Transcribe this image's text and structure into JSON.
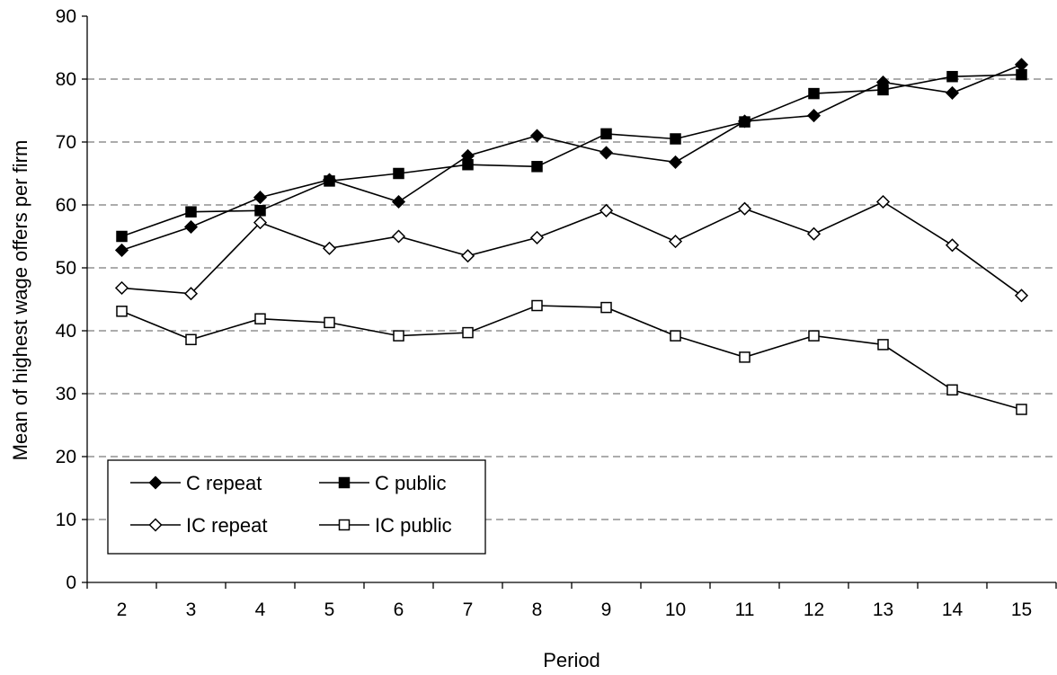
{
  "chart_data": {
    "type": "line",
    "xlabel": "Period",
    "ylabel": "Mean of highest wage offers per firm",
    "ylim": [
      0,
      90
    ],
    "yticks": [
      0,
      10,
      20,
      30,
      40,
      50,
      60,
      70,
      80,
      90
    ],
    "grid": "horizontal dashed",
    "legend_position": "bottom-left",
    "x": [
      2,
      3,
      4,
      5,
      6,
      7,
      8,
      9,
      10,
      11,
      12,
      13,
      14,
      15
    ],
    "series": [
      {
        "name": "C repeat",
        "marker": "diamond-filled",
        "values": [
          52.8,
          56.5,
          61.2,
          64.0,
          60.5,
          67.8,
          71.0,
          68.3,
          66.8,
          73.3,
          74.2,
          79.5,
          77.8,
          82.3
        ]
      },
      {
        "name": "C public",
        "marker": "square-filled",
        "values": [
          55.0,
          58.9,
          59.1,
          63.8,
          65.0,
          66.4,
          66.1,
          71.3,
          70.5,
          73.2,
          77.7,
          78.3,
          80.4,
          80.7
        ]
      },
      {
        "name": "IC repeat",
        "marker": "diamond-open",
        "values": [
          46.8,
          45.9,
          57.2,
          53.1,
          55.0,
          51.9,
          54.8,
          59.1,
          54.2,
          59.4,
          55.4,
          60.5,
          53.6,
          45.6
        ]
      },
      {
        "name": "IC public",
        "marker": "square-open",
        "values": [
          43.1,
          38.6,
          41.9,
          41.3,
          39.2,
          39.7,
          44.0,
          43.7,
          39.2,
          35.8,
          39.2,
          37.8,
          30.6,
          27.5
        ]
      }
    ]
  }
}
